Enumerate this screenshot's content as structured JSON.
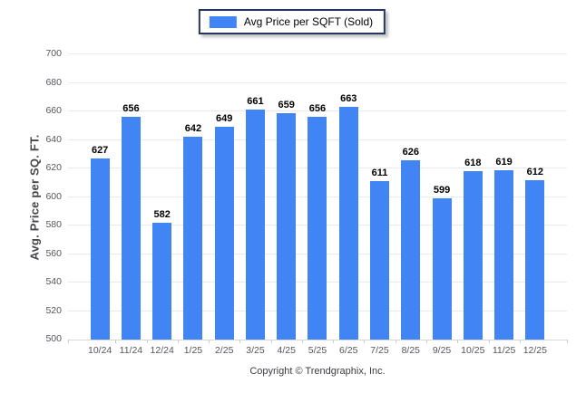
{
  "legend": {
    "label": "Avg Price per SQFT (Sold)"
  },
  "footer": {
    "copyright": "Copyright © Trendgraphix, Inc."
  },
  "colors": {
    "bar": "#4184F3",
    "grid": "#e9e9ee",
    "axis_text": "#55565c",
    "value_text": "#000000",
    "legend_border": "#25365E"
  },
  "chart_data": {
    "type": "bar",
    "title": "",
    "categories": [
      "10/24",
      "11/24",
      "12/24",
      "1/25",
      "2/25",
      "3/25",
      "4/25",
      "5/25",
      "6/25",
      "7/25",
      "8/25",
      "9/25",
      "10/25",
      "11/25",
      "12/25"
    ],
    "values": [
      627,
      656,
      582,
      642,
      649,
      661,
      659,
      656,
      663,
      611,
      626,
      599,
      618,
      619,
      612
    ],
    "series_name": "Avg Price per SQFT (Sold)",
    "xlabel": "",
    "ylabel": "Avg. Price per SQ. FT.",
    "ylim": [
      500,
      700
    ],
    "ytick_step": 20,
    "grid": true,
    "legend_position": "top",
    "bar_color": "#4184F3",
    "value_labels": true
  }
}
